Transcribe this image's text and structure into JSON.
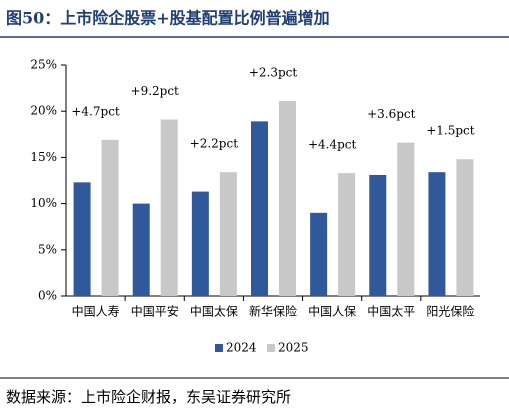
{
  "chart_data": {
    "type": "bar",
    "title": "图50：上市险企股票+股基配置比例普遍增加",
    "categories": [
      "中国人寿",
      "中国平安",
      "中国太保",
      "新华保险",
      "中国人保",
      "中国太平",
      "阳光保险"
    ],
    "series": [
      {
        "name": "2024",
        "color": "#30599b",
        "values": [
          12.3,
          10.0,
          11.3,
          18.9,
          9.0,
          13.1,
          13.4
        ]
      },
      {
        "name": "2025",
        "color": "#c8c8c8",
        "values": [
          16.9,
          19.1,
          13.4,
          21.1,
          13.3,
          16.6,
          14.8
        ]
      }
    ],
    "annotations": [
      "+4.7pct",
      "+9.2pct",
      "+2.2pct",
      "+2.3pct",
      "+4.4pct",
      "+3.6pct",
      "+1.5pct"
    ],
    "ylim": [
      0,
      25
    ],
    "yticks": [
      {
        "value": 0,
        "label": "0%"
      },
      {
        "value": 5,
        "label": "5%"
      },
      {
        "value": 10,
        "label": "10%"
      },
      {
        "value": 15,
        "label": "15%"
      },
      {
        "value": 20,
        "label": "20%"
      },
      {
        "value": 25,
        "label": "25%"
      }
    ],
    "grid": false,
    "legend": "bottom",
    "source": "数据来源：上市险企财报，东吴证券研究所"
  }
}
